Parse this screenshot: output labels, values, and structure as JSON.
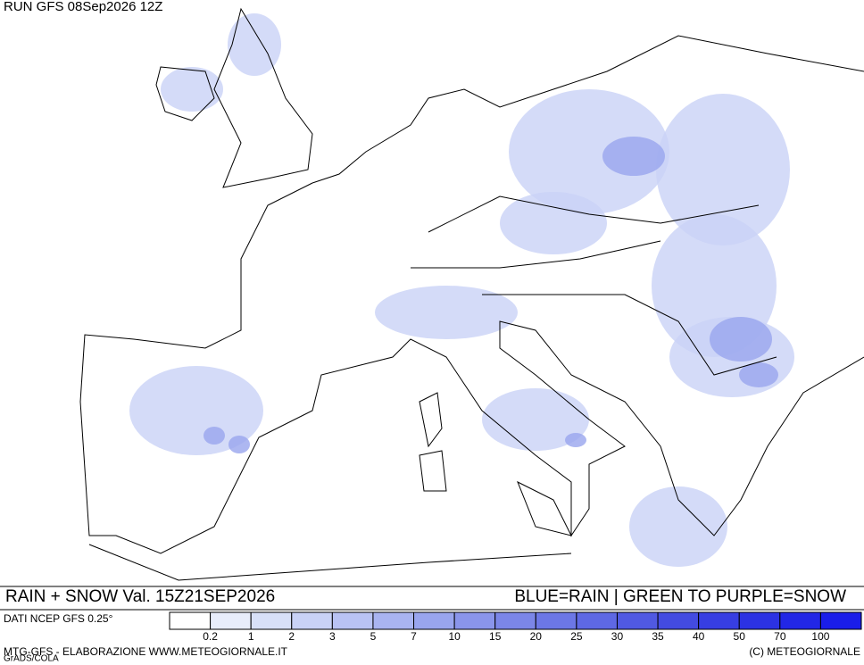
{
  "header": {
    "run": "RUN GFS 08Sep2026 12Z"
  },
  "caption": {
    "left": "RAIN + SNOW Val. 15Z21SEP2026",
    "right": "BLUE=RAIN | GREEN TO PURPLE=SNOW"
  },
  "colorbar": {
    "label": "DATI NCEP GFS 0.25°",
    "ticks": [
      0.2,
      1,
      2,
      3,
      5,
      7,
      10,
      15,
      20,
      25,
      30,
      35,
      40,
      50,
      70,
      100
    ],
    "colors": [
      "#ffffff",
      "#e8edfb",
      "#d8e0f8",
      "#c9d2f6",
      "#b9c3f4",
      "#a9b4f1",
      "#99a5ee",
      "#8a95eb",
      "#7b86e8",
      "#6c77e6",
      "#5e68e4",
      "#5059e2",
      "#434be1",
      "#373ee2",
      "#2c32e3",
      "#2227e6",
      "#1a1de9"
    ]
  },
  "footer": {
    "left": "MTG-GFS - ELABORAZIONE WWW.METEOGIORNALE.IT",
    "right": "(C) METEOGIORNALE",
    "credit": "GrADS/COLA"
  }
}
